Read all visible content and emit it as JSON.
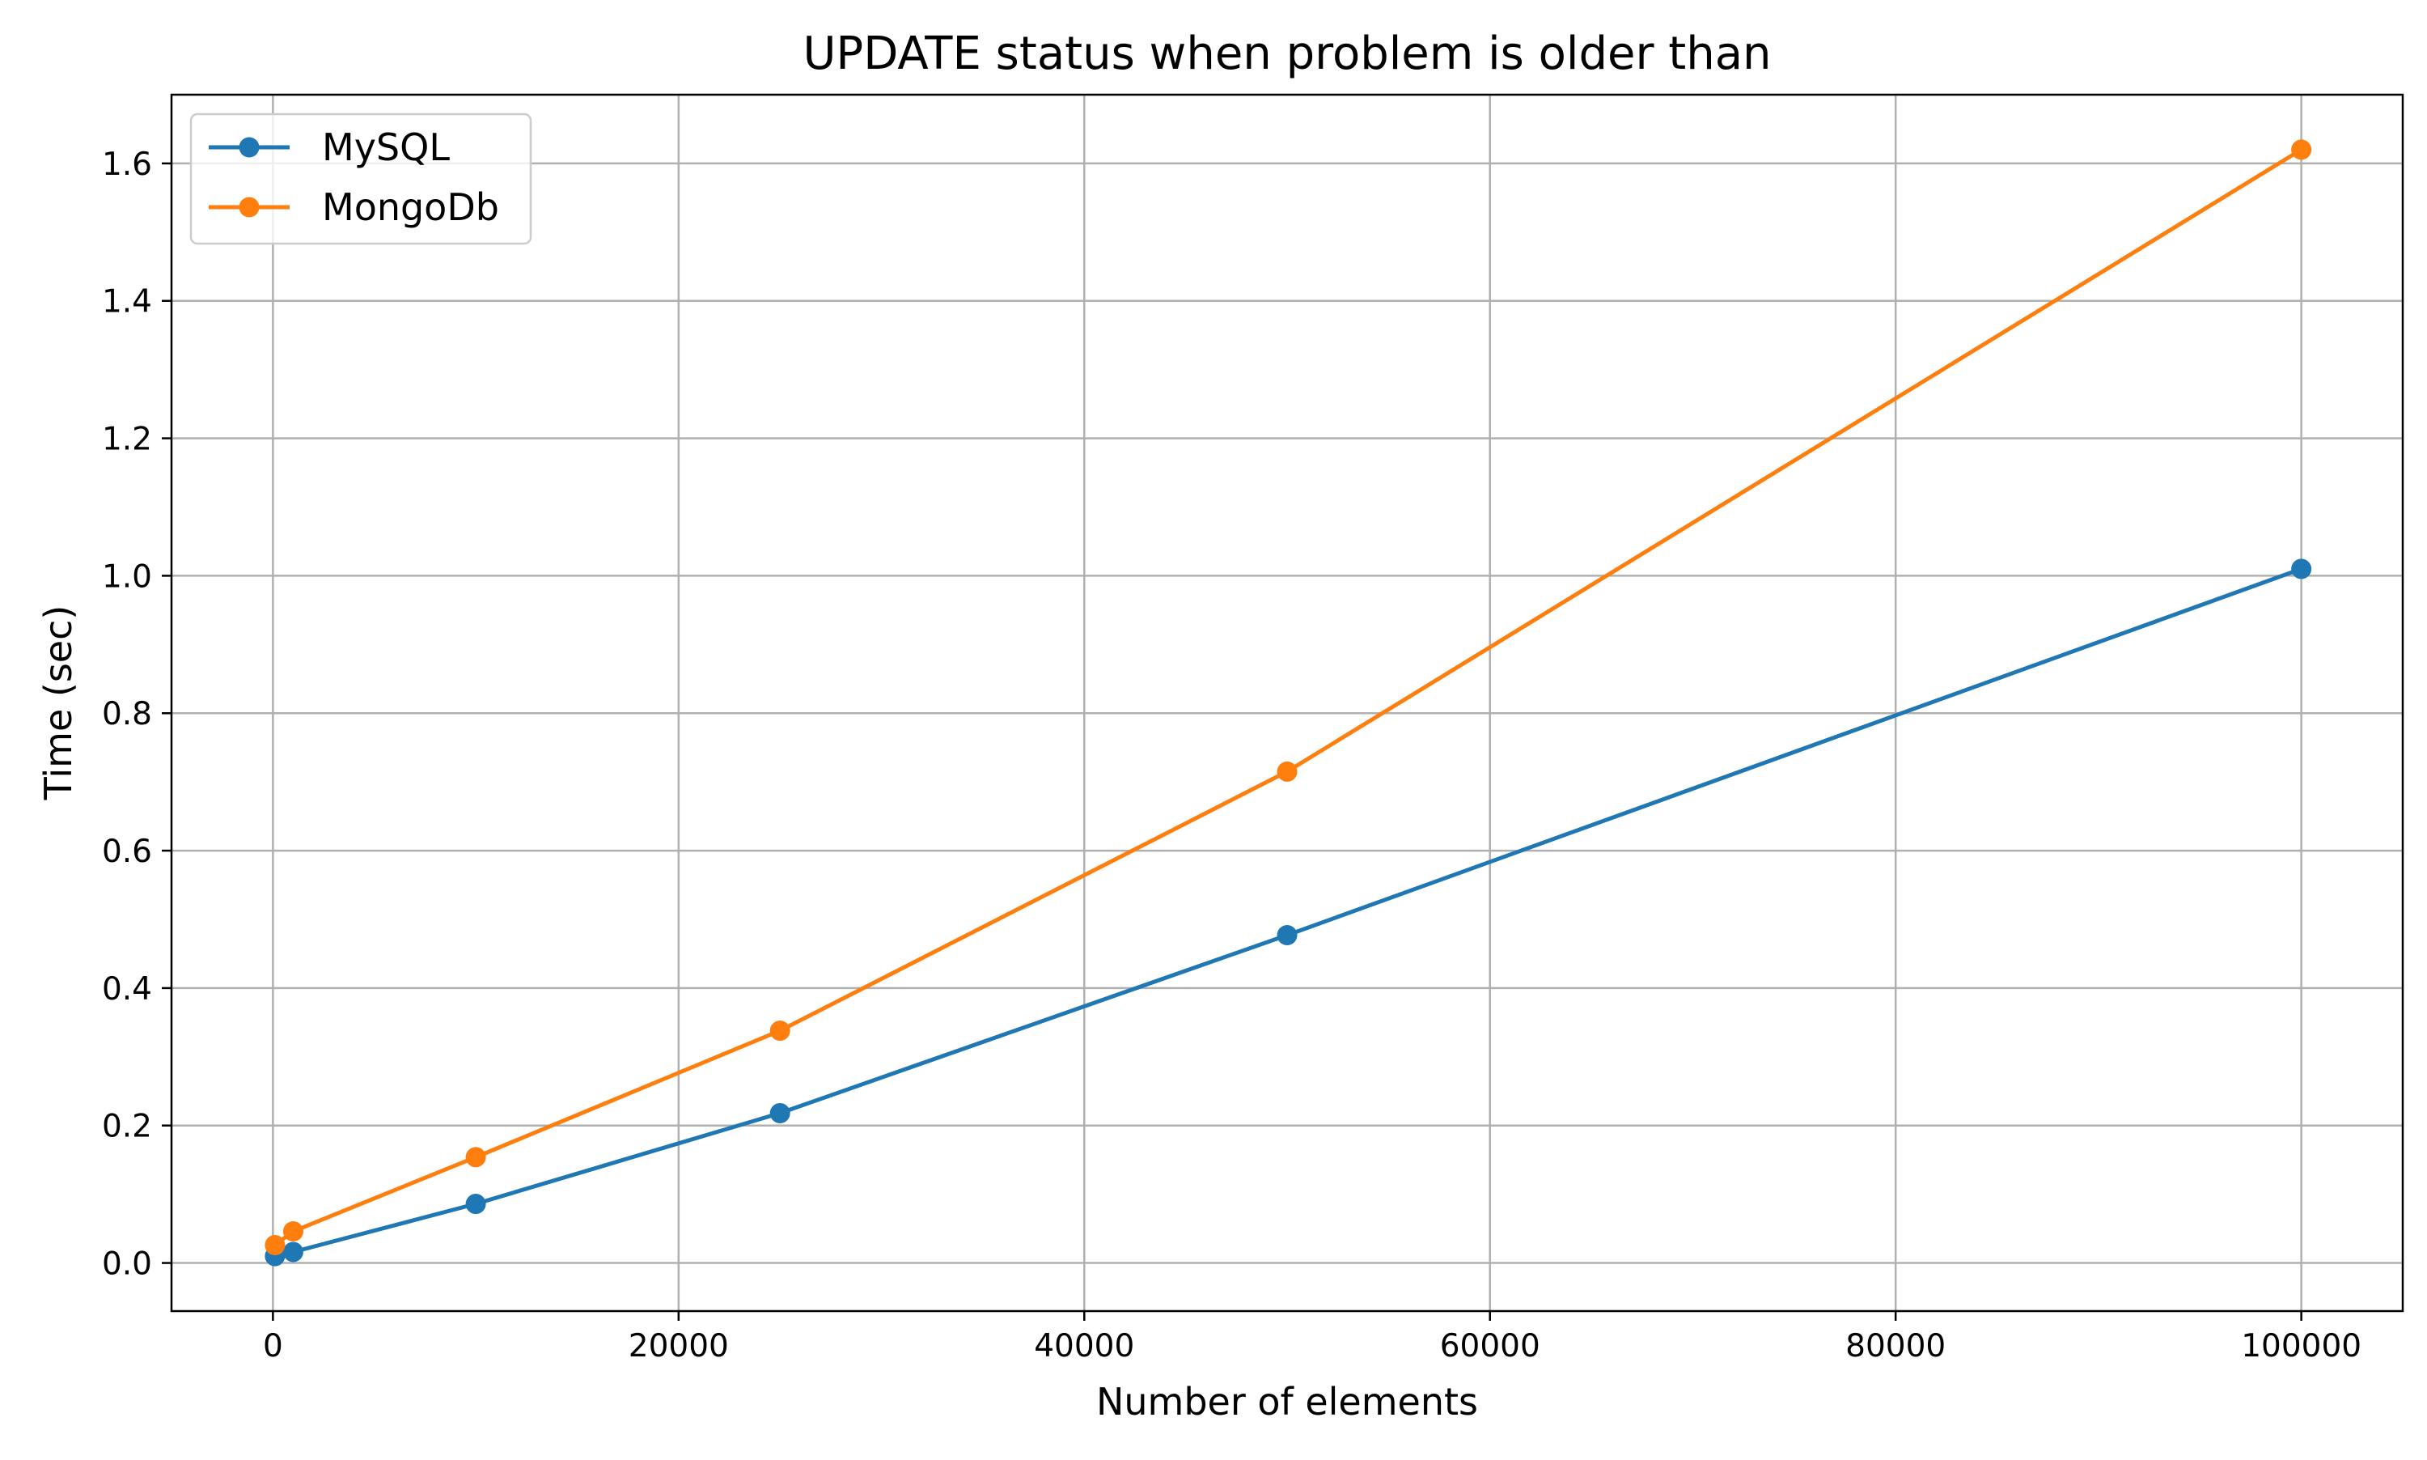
{
  "chart_data": {
    "type": "line",
    "title": "UPDATE status when problem is older than",
    "xlabel": "Number of elements",
    "ylabel": "Time (sec)",
    "xlim": [
      -5000,
      105000
    ],
    "ylim": [
      -0.07,
      1.7
    ],
    "xticks": [
      0,
      20000,
      40000,
      60000,
      80000,
      100000
    ],
    "xtick_labels": [
      "0",
      "20000",
      "40000",
      "60000",
      "80000",
      "100000"
    ],
    "yticks": [
      0.0,
      0.2,
      0.4,
      0.6,
      0.8,
      1.0,
      1.2,
      1.4,
      1.6
    ],
    "ytick_labels": [
      "0.0",
      "0.2",
      "0.4",
      "0.6",
      "0.8",
      "1.0",
      "1.2",
      "1.4",
      "1.6"
    ],
    "grid": true,
    "legend_position": "top-left",
    "x": [
      100,
      1000,
      10000,
      25000,
      50000,
      100000
    ],
    "series": [
      {
        "name": "MySQL",
        "color": "#1f77b4",
        "marker": "circle",
        "values": [
          0.01,
          0.016,
          0.086,
          0.218,
          0.477,
          1.01
        ]
      },
      {
        "name": "MongoDb",
        "color": "#ff7f0e",
        "marker": "circle",
        "values": [
          0.026,
          0.046,
          0.154,
          0.338,
          0.715,
          1.62
        ]
      }
    ]
  }
}
